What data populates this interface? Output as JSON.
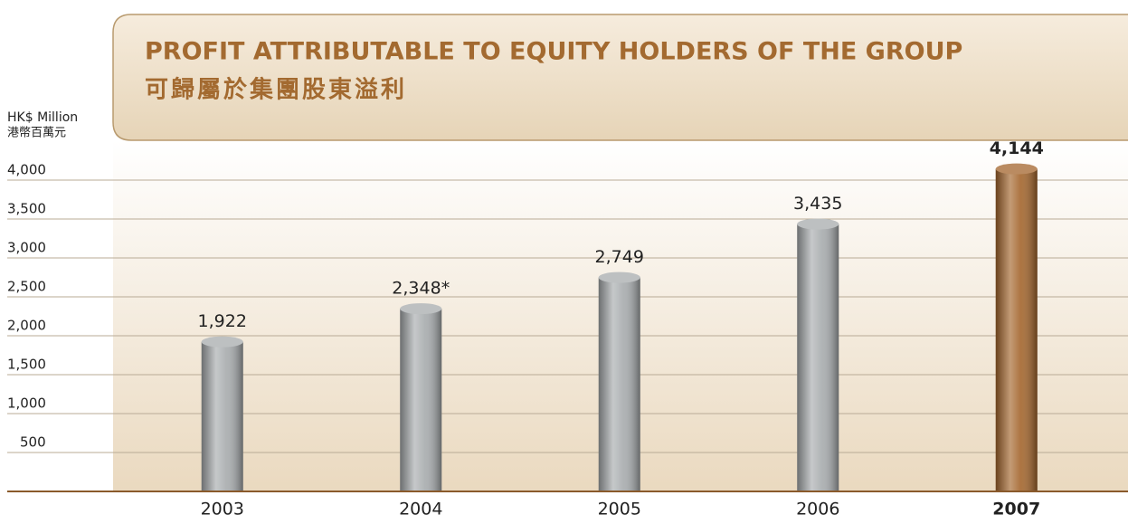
{
  "chart_data": {
    "type": "bar",
    "title": "PROFIT ATTRIBUTABLE TO EQUITY HOLDERS OF THE GROUP",
    "subtitle": "可歸屬於集團股東溢利",
    "y_label": "HK$ Million",
    "y_label_2": "港幣百萬元",
    "categories": [
      "2003",
      "2004",
      "2005",
      "2006",
      "2007"
    ],
    "values": [
      1922,
      2348,
      2749,
      3435,
      4144
    ],
    "value_labels": [
      "1,922",
      "2,348*",
      "2,749",
      "3,435",
      "4,144"
    ],
    "colors": [
      "#a7abad",
      "#a7abad",
      "#a7abad",
      "#a7abad",
      "#a3652c"
    ],
    "ylim": [
      0,
      4500
    ],
    "yticks": [
      {
        "value": 500,
        "label": "500"
      },
      {
        "value": 1000,
        "label": "1,000"
      },
      {
        "value": 1500,
        "label": "1,500"
      },
      {
        "value": 2000,
        "label": "2,000"
      },
      {
        "value": 2500,
        "label": "2,500"
      },
      {
        "value": 3000,
        "label": "3,000"
      },
      {
        "value": 3500,
        "label": "3,500"
      },
      {
        "value": 4000,
        "label": "4,000"
      }
    ],
    "grid": true
  }
}
